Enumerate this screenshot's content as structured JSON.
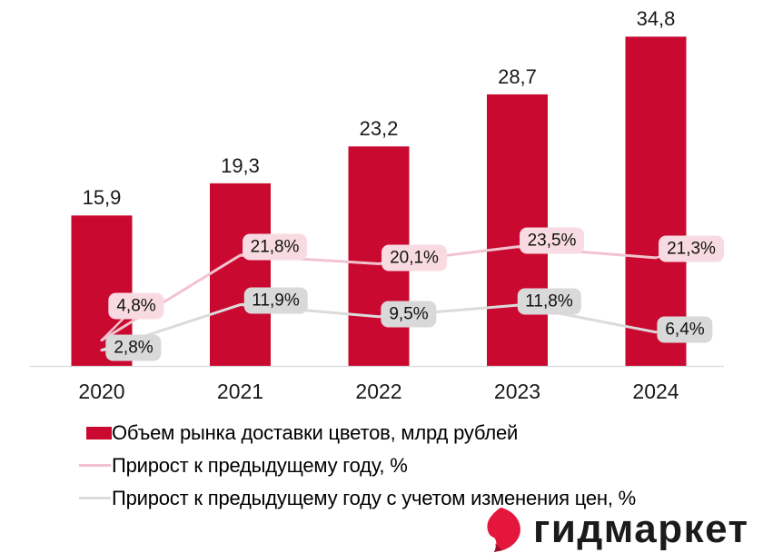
{
  "chart_data": {
    "type": "bar",
    "title": "",
    "categories": [
      "2020",
      "2021",
      "2022",
      "2023",
      "2024"
    ],
    "series": [
      {
        "name": "Объем рынка доставки цветов, млрд рублей",
        "type": "bar",
        "values": [
          15.9,
          19.3,
          23.2,
          28.7,
          34.8
        ],
        "labels": [
          "15,9",
          "19,3",
          "23,2",
          "28,7",
          "34,8"
        ],
        "color": "#C9092F"
      },
      {
        "name": "Прирост к предыдущему году, %",
        "type": "line",
        "values": [
          4.8,
          21.8,
          20.1,
          23.5,
          21.3
        ],
        "labels": [
          "4,8%",
          "21,8%",
          "20,1%",
          "23,5%",
          "21,3%"
        ],
        "color": "#F2C3CF",
        "label_bg": "#F8DBE2"
      },
      {
        "name": "Прирост к предыдущему году с учетом изменения цен, %",
        "type": "line",
        "values": [
          2.8,
          11.9,
          9.5,
          11.8,
          6.4
        ],
        "labels": [
          "2,8%",
          "11,9%",
          "9,5%",
          "11,8%",
          "6,4%"
        ],
        "color": "#DBDBDB",
        "label_bg": "#D9D9D9"
      }
    ],
    "legend_position": "bottom-left",
    "grid": false,
    "y_axis_visible": false,
    "x_axis_line_color": "#D9D9D9"
  },
  "branding": {
    "logo_text": "гидмаркет",
    "logo_text_color": "#1b1b1b",
    "logo_icon": "petal-icon",
    "logo_icon_color": "#E4163C"
  }
}
